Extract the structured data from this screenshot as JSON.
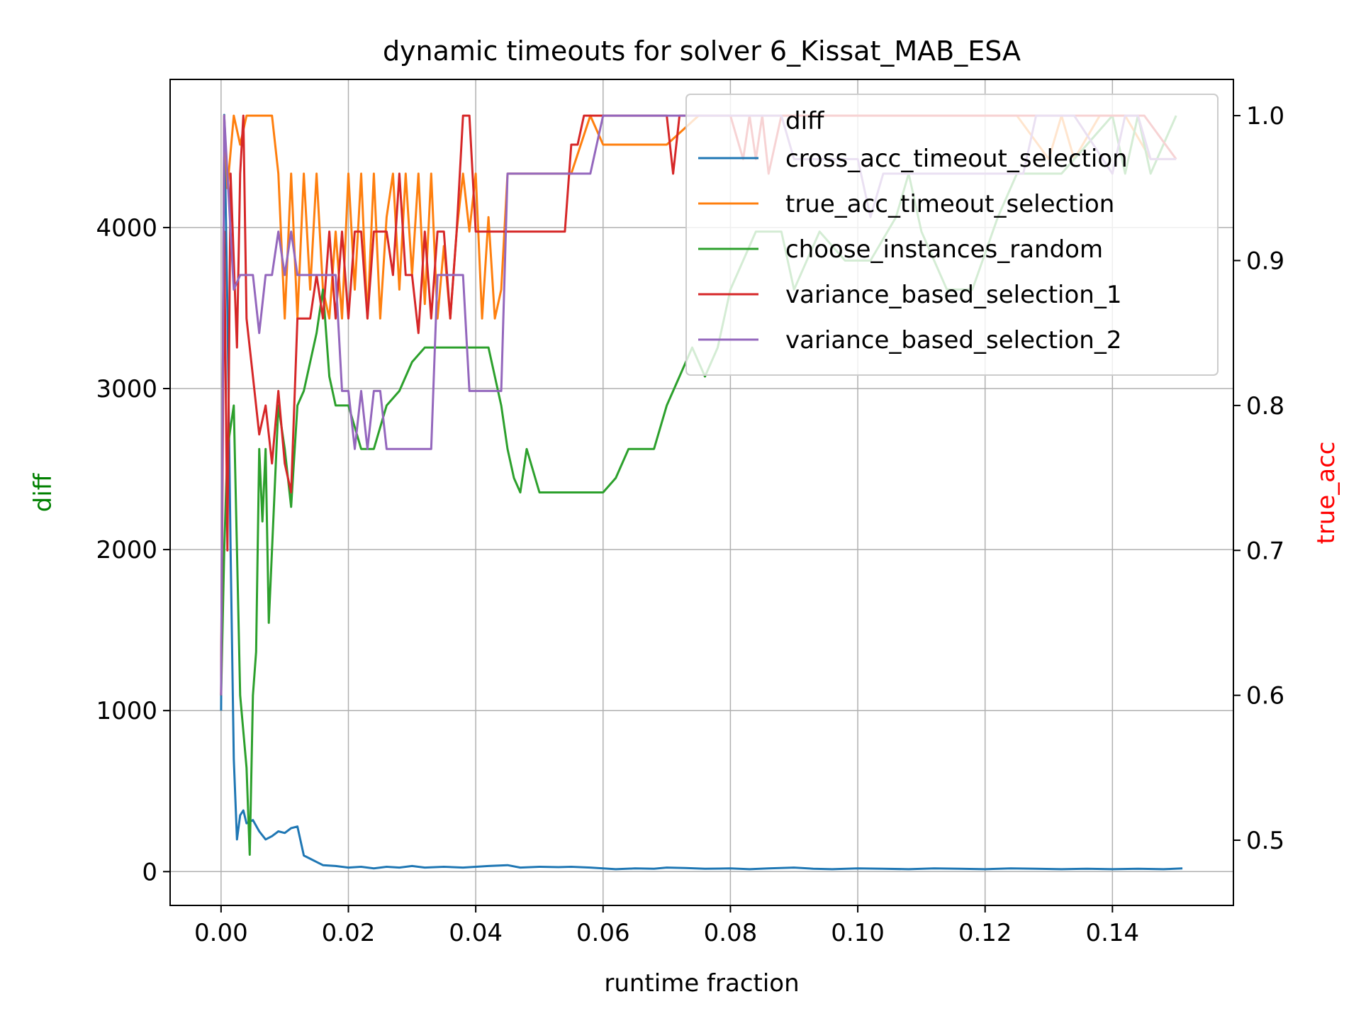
{
  "chart_data": {
    "type": "line",
    "title": "dynamic timeouts for solver 6_Kissat_MAB_ESA",
    "xlabel": "runtime fraction",
    "ylabel_left": "diff",
    "ylabel_right": "true_acc",
    "xlim": [
      -0.008,
      0.159
    ],
    "ylim_left": [
      -210,
      4920
    ],
    "ylim_right": [
      0.455,
      1.025
    ],
    "xticks": [
      "0.00",
      "0.02",
      "0.04",
      "0.06",
      "0.08",
      "0.10",
      "0.12",
      "0.14"
    ],
    "xtick_values": [
      0,
      0.02,
      0.04,
      0.06,
      0.08,
      0.1,
      0.12,
      0.14
    ],
    "yticks_left": [
      "0",
      "1000",
      "2000",
      "3000",
      "4000"
    ],
    "ytick_values_left": [
      0,
      1000,
      2000,
      3000,
      4000
    ],
    "yticks_right": [
      "0.5",
      "0.6",
      "0.7",
      "0.8",
      "0.9",
      "1.0"
    ],
    "ytick_values_right": [
      0.5,
      0.6,
      0.7,
      0.8,
      0.9,
      1.0
    ],
    "grid": true,
    "legend_placement": "top-right",
    "legend": {
      "title": "diff",
      "entries": [
        "cross_acc_timeout_selection",
        "true_acc_timeout_selection",
        "choose_instances_random",
        "variance_based_selection_1",
        "variance_based_selection_2"
      ]
    },
    "colors": {
      "cross_acc_timeout_selection": "#1f77b4",
      "true_acc_timeout_selection": "#ff7f0e",
      "choose_instances_random": "#2ca02c",
      "variance_based_selection_1": "#d62728",
      "variance_based_selection_2": "#9467bd",
      "left_label": "#008000",
      "right_label": "#ff0000"
    },
    "series": [
      {
        "name": "cross_acc_timeout_selection",
        "axis": "left",
        "x": [
          0,
          0.0005,
          0.001,
          0.0015,
          0.002,
          0.0025,
          0.003,
          0.0035,
          0.004,
          0.005,
          0.006,
          0.007,
          0.008,
          0.009,
          0.01,
          0.011,
          0.012,
          0.013,
          0.014,
          0.015,
          0.016,
          0.018,
          0.02,
          0.022,
          0.024,
          0.026,
          0.028,
          0.03,
          0.032,
          0.035,
          0.038,
          0.04,
          0.042,
          0.045,
          0.047,
          0.05,
          0.053,
          0.055,
          0.058,
          0.06,
          0.062,
          0.065,
          0.068,
          0.07,
          0.073,
          0.076,
          0.08,
          0.083,
          0.086,
          0.09,
          0.093,
          0.096,
          0.1,
          0.104,
          0.108,
          0.112,
          0.116,
          0.12,
          0.124,
          0.128,
          0.132,
          0.136,
          0.14,
          0.144,
          0.148,
          0.151
        ],
        "values": [
          1000,
          4700,
          3500,
          2000,
          700,
          200,
          350,
          380,
          300,
          320,
          250,
          200,
          220,
          250,
          240,
          270,
          280,
          100,
          80,
          60,
          40,
          35,
          25,
          30,
          20,
          30,
          25,
          35,
          25,
          30,
          25,
          30,
          35,
          40,
          25,
          30,
          28,
          30,
          25,
          20,
          15,
          20,
          18,
          25,
          22,
          18,
          20,
          15,
          20,
          25,
          18,
          15,
          20,
          18,
          15,
          20,
          18,
          15,
          20,
          18,
          15,
          18,
          15,
          18,
          15,
          20
        ]
      },
      {
        "name": "true_acc_timeout_selection",
        "axis": "right",
        "x": [
          0,
          0.0005,
          0.001,
          0.002,
          0.003,
          0.004,
          0.006,
          0.008,
          0.009,
          0.01,
          0.011,
          0.012,
          0.013,
          0.014,
          0.015,
          0.016,
          0.017,
          0.018,
          0.019,
          0.02,
          0.021,
          0.022,
          0.023,
          0.024,
          0.025,
          0.026,
          0.027,
          0.028,
          0.029,
          0.03,
          0.031,
          0.032,
          0.033,
          0.034,
          0.035,
          0.036,
          0.037,
          0.038,
          0.039,
          0.04,
          0.041,
          0.042,
          0.043,
          0.044,
          0.045,
          0.05,
          0.055,
          0.058,
          0.06,
          0.065,
          0.07,
          0.075,
          0.08,
          0.085,
          0.09,
          0.095,
          0.1,
          0.11,
          0.12,
          0.125,
          0.13,
          0.132,
          0.134,
          0.138,
          0.142,
          0.146,
          0.15
        ],
        "values": [
          0.6,
          1.0,
          0.95,
          1.0,
          0.98,
          1.0,
          1.0,
          1.0,
          0.96,
          0.86,
          0.96,
          0.86,
          0.96,
          0.88,
          0.96,
          0.88,
          0.86,
          0.92,
          0.86,
          0.96,
          0.88,
          0.96,
          0.86,
          0.96,
          0.86,
          0.93,
          0.96,
          0.88,
          0.96,
          0.89,
          0.96,
          0.87,
          0.96,
          0.86,
          0.91,
          0.86,
          0.92,
          0.96,
          0.92,
          0.96,
          0.86,
          0.93,
          0.86,
          0.88,
          0.96,
          0.96,
          0.96,
          1.0,
          0.98,
          0.98,
          0.98,
          1.0,
          1.0,
          1.0,
          1.0,
          1.0,
          1.0,
          1.0,
          1.0,
          1.0,
          0.97,
          1.0,
          0.97,
          1.0,
          1.0,
          0.97,
          0.97
        ]
      },
      {
        "name": "choose_instances_random",
        "axis": "right",
        "x": [
          0,
          0.0005,
          0.001,
          0.002,
          0.003,
          0.004,
          0.0045,
          0.005,
          0.0055,
          0.006,
          0.0065,
          0.007,
          0.0075,
          0.008,
          0.009,
          0.01,
          0.011,
          0.012,
          0.013,
          0.015,
          0.016,
          0.017,
          0.018,
          0.02,
          0.022,
          0.024,
          0.026,
          0.028,
          0.03,
          0.032,
          0.034,
          0.036,
          0.038,
          0.04,
          0.042,
          0.044,
          0.045,
          0.046,
          0.047,
          0.048,
          0.05,
          0.055,
          0.06,
          0.062,
          0.064,
          0.066,
          0.068,
          0.07,
          0.072,
          0.074,
          0.076,
          0.078,
          0.08,
          0.082,
          0.084,
          0.086,
          0.088,
          0.09,
          0.094,
          0.098,
          0.102,
          0.106,
          0.108,
          0.11,
          0.114,
          0.118,
          0.122,
          0.125,
          0.128,
          0.132,
          0.136,
          0.14,
          0.142,
          0.144,
          0.146,
          0.15
        ],
        "values": [
          0.6,
          0.7,
          0.77,
          0.8,
          0.6,
          0.55,
          0.49,
          0.6,
          0.63,
          0.77,
          0.72,
          0.77,
          0.65,
          0.7,
          0.8,
          0.77,
          0.73,
          0.8,
          0.81,
          0.85,
          0.88,
          0.82,
          0.8,
          0.8,
          0.77,
          0.77,
          0.8,
          0.81,
          0.83,
          0.84,
          0.84,
          0.84,
          0.84,
          0.84,
          0.84,
          0.8,
          0.77,
          0.75,
          0.74,
          0.77,
          0.74,
          0.74,
          0.74,
          0.75,
          0.77,
          0.77,
          0.77,
          0.8,
          0.82,
          0.84,
          0.82,
          0.84,
          0.88,
          0.9,
          0.92,
          0.92,
          0.92,
          0.88,
          0.92,
          0.9,
          0.9,
          0.93,
          0.96,
          0.92,
          0.88,
          0.88,
          0.93,
          0.96,
          0.96,
          0.96,
          0.98,
          1.0,
          0.96,
          1.0,
          0.96,
          1.0
        ]
      },
      {
        "name": "variance_based_selection_1",
        "axis": "right",
        "x": [
          0,
          0.0005,
          0.001,
          0.0015,
          0.002,
          0.0025,
          0.003,
          0.0035,
          0.004,
          0.005,
          0.006,
          0.007,
          0.008,
          0.009,
          0.01,
          0.011,
          0.012,
          0.013,
          0.014,
          0.015,
          0.016,
          0.017,
          0.018,
          0.019,
          0.02,
          0.021,
          0.022,
          0.023,
          0.024,
          0.025,
          0.026,
          0.027,
          0.028,
          0.029,
          0.03,
          0.031,
          0.032,
          0.033,
          0.034,
          0.035,
          0.036,
          0.037,
          0.038,
          0.039,
          0.04,
          0.042,
          0.045,
          0.05,
          0.054,
          0.055,
          0.056,
          0.057,
          0.058,
          0.06,
          0.065,
          0.07,
          0.071,
          0.072,
          0.075,
          0.08,
          0.082,
          0.083,
          0.084,
          0.085,
          0.086,
          0.088,
          0.09,
          0.095,
          0.1,
          0.105,
          0.11,
          0.115,
          0.12,
          0.125,
          0.13,
          0.135,
          0.14,
          0.145,
          0.15
        ],
        "values": [
          0.6,
          0.92,
          0.7,
          0.96,
          0.9,
          0.84,
          0.96,
          1.0,
          0.86,
          0.82,
          0.78,
          0.8,
          0.76,
          0.81,
          0.76,
          0.74,
          0.86,
          0.86,
          0.86,
          0.89,
          0.86,
          0.92,
          0.86,
          0.92,
          0.86,
          0.92,
          0.92,
          0.86,
          0.92,
          0.92,
          0.92,
          0.89,
          0.96,
          0.89,
          0.89,
          0.85,
          0.92,
          0.86,
          0.92,
          0.92,
          0.86,
          0.92,
          1.0,
          1.0,
          0.92,
          0.92,
          0.92,
          0.92,
          0.92,
          0.98,
          0.98,
          1.0,
          1.0,
          1.0,
          1.0,
          1.0,
          0.96,
          1.0,
          1.0,
          1.0,
          0.97,
          1.0,
          0.97,
          1.0,
          0.96,
          1.0,
          1.0,
          1.0,
          1.0,
          1.0,
          1.0,
          1.0,
          1.0,
          1.0,
          1.0,
          1.0,
          1.0,
          1.0,
          0.97
        ]
      },
      {
        "name": "variance_based_selection_2",
        "axis": "right",
        "x": [
          0,
          0.0005,
          0.001,
          0.0015,
          0.002,
          0.003,
          0.004,
          0.005,
          0.006,
          0.007,
          0.008,
          0.009,
          0.01,
          0.011,
          0.012,
          0.013,
          0.014,
          0.016,
          0.018,
          0.019,
          0.02,
          0.021,
          0.022,
          0.023,
          0.024,
          0.025,
          0.026,
          0.027,
          0.028,
          0.029,
          0.03,
          0.031,
          0.032,
          0.033,
          0.034,
          0.036,
          0.038,
          0.039,
          0.04,
          0.041,
          0.042,
          0.043,
          0.044,
          0.045,
          0.046,
          0.05,
          0.055,
          0.058,
          0.06,
          0.065,
          0.07,
          0.08,
          0.088,
          0.09,
          0.095,
          0.1,
          0.102,
          0.104,
          0.11,
          0.12,
          0.126,
          0.128,
          0.134,
          0.14,
          0.142,
          0.144,
          0.146,
          0.15
        ],
        "values": [
          0.6,
          1.0,
          0.96,
          0.92,
          0.88,
          0.89,
          0.89,
          0.89,
          0.85,
          0.89,
          0.89,
          0.92,
          0.89,
          0.92,
          0.89,
          0.89,
          0.89,
          0.89,
          0.89,
          0.81,
          0.81,
          0.77,
          0.81,
          0.77,
          0.81,
          0.81,
          0.77,
          0.77,
          0.77,
          0.77,
          0.77,
          0.77,
          0.77,
          0.77,
          0.89,
          0.89,
          0.89,
          0.81,
          0.81,
          0.81,
          0.81,
          0.81,
          0.81,
          0.96,
          0.96,
          0.96,
          0.96,
          0.96,
          1.0,
          1.0,
          1.0,
          1.0,
          1.0,
          0.97,
          0.97,
          0.97,
          0.93,
          0.96,
          0.96,
          0.96,
          0.96,
          1.0,
          1.0,
          0.96,
          1.0,
          1.0,
          0.97,
          0.97
        ]
      }
    ]
  }
}
